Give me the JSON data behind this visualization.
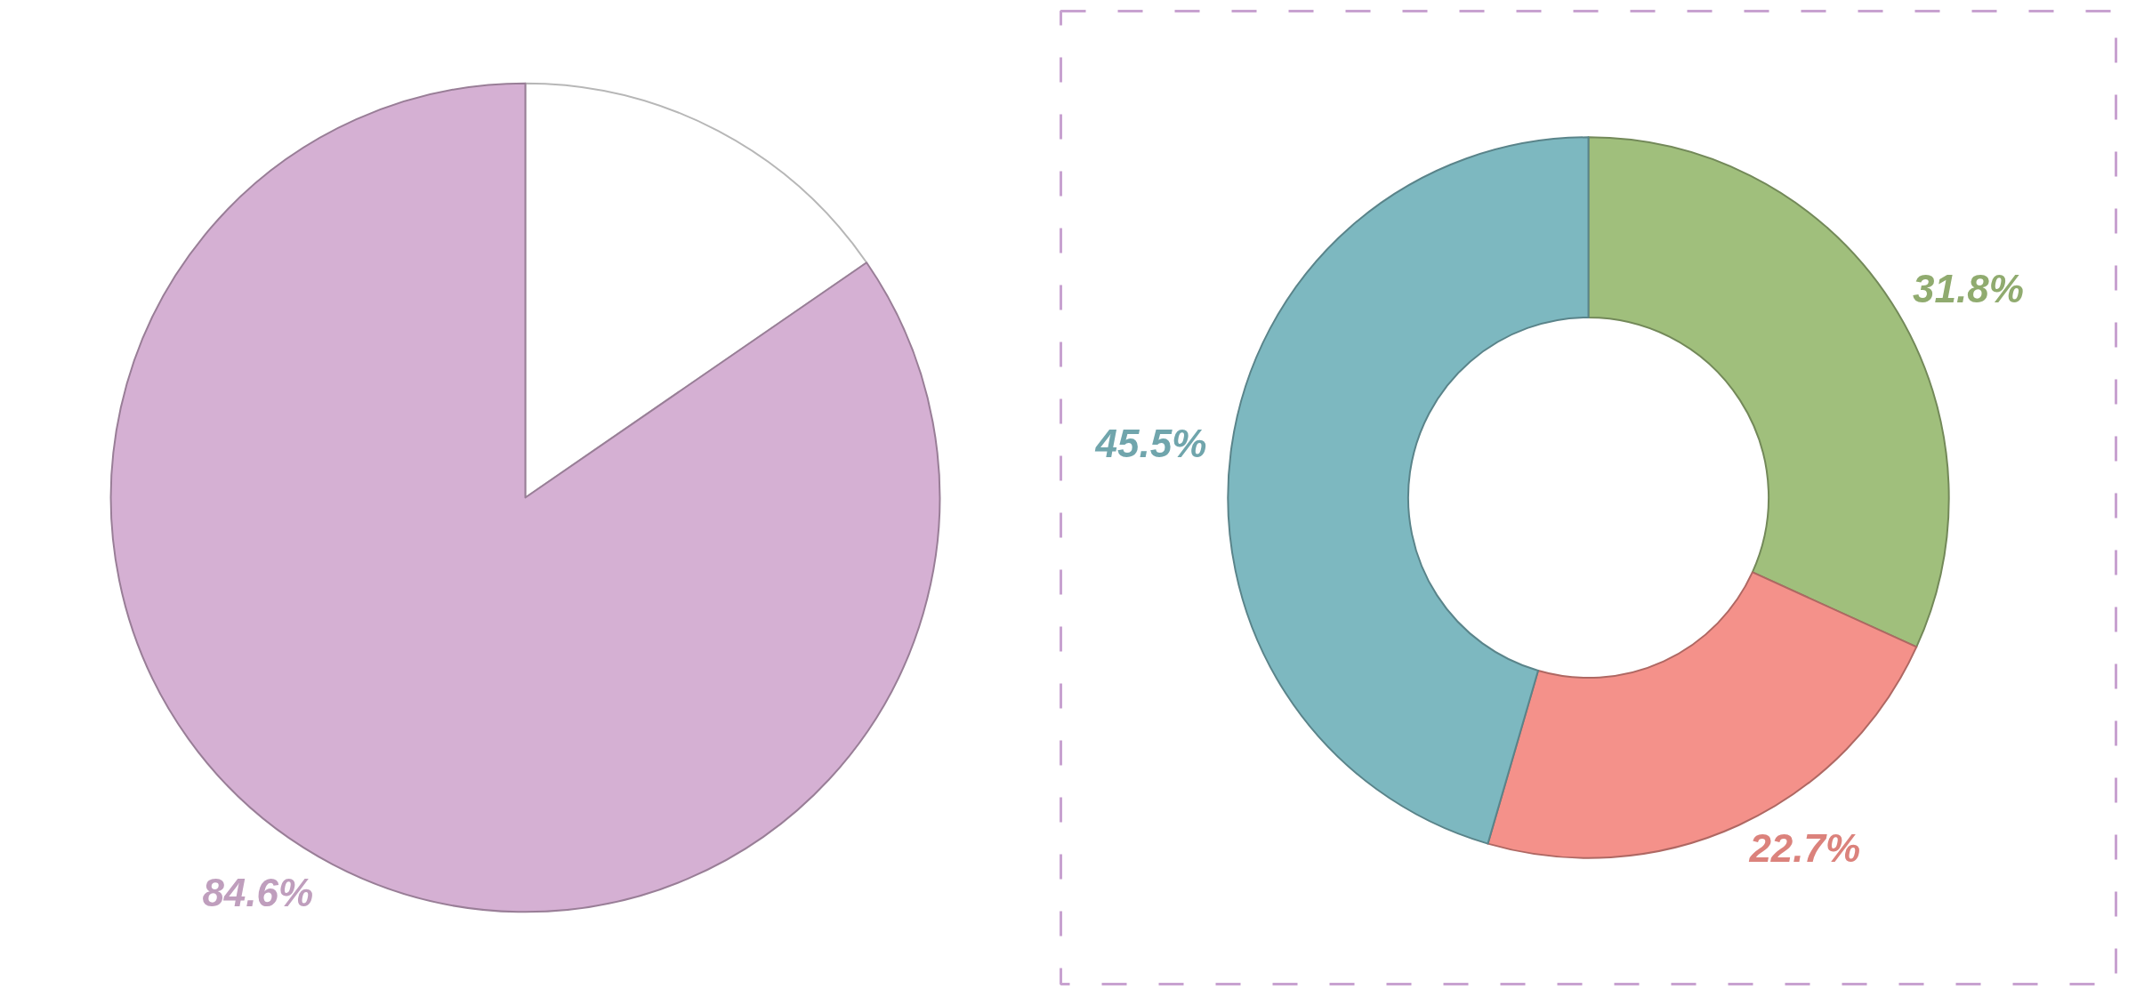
{
  "chart_data": [
    {
      "type": "pie",
      "categories": [
        null,
        null
      ],
      "values": [
        15.4,
        84.6
      ],
      "colors": [
        "#ffffff",
        "#d5b0d3"
      ],
      "value_labels": [
        null,
        "84.6%"
      ]
    },
    {
      "type": "donut",
      "categories": [
        null,
        null,
        null
      ],
      "values": [
        31.8,
        22.7,
        45.5
      ],
      "colors": [
        "#a0bf7c",
        "#f4918a",
        "#7db8c0"
      ],
      "value_labels": [
        "31.8%",
        "22.7%",
        "45.5%"
      ]
    }
  ]
}
